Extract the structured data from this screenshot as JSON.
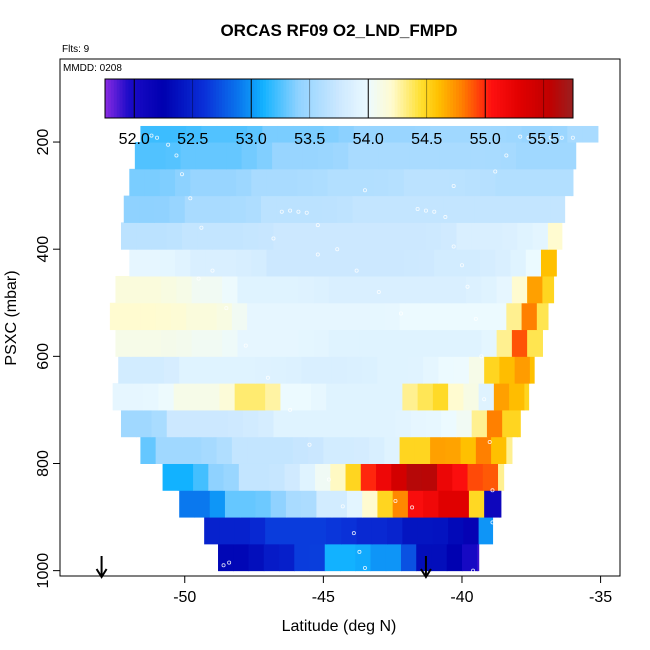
{
  "chart_data": {
    "type": "heatmap",
    "title": "ORCAS RF09 O2_LND_FMPD",
    "flights_note": "Flts: 9",
    "date_note": "MMDD: 0208",
    "xlabel": "Latitude (deg N)",
    "ylabel": "PSXC (mbar)",
    "xlim": [
      -54.5,
      -34.3
    ],
    "ylim": [
      1010,
      45
    ],
    "y_reversed": true,
    "x_ticks": [
      -50,
      -45,
      -40,
      -35
    ],
    "y_ticks": [
      200,
      400,
      600,
      800,
      1000
    ],
    "colorbar": {
      "min": 51.75,
      "max": 55.75,
      "ticks": [
        52.0,
        52.5,
        53.0,
        53.5,
        54.0,
        54.5,
        55.0,
        55.5
      ],
      "tick_labels": [
        "52.0",
        "52.5",
        "53.0",
        "53.5",
        "54.0",
        "54.5",
        "55.0",
        "55.5"
      ],
      "stops": [
        {
          "v": 51.75,
          "c": "#8a2be2"
        },
        {
          "v": 51.95,
          "c": "#1c0bc8"
        },
        {
          "v": 52.25,
          "c": "#0000b0"
        },
        {
          "v": 52.6,
          "c": "#0a30d8"
        },
        {
          "v": 52.9,
          "c": "#0a78ee"
        },
        {
          "v": 53.1,
          "c": "#12b2ff"
        },
        {
          "v": 53.4,
          "c": "#8fd2ff"
        },
        {
          "v": 53.75,
          "c": "#cce8ff"
        },
        {
          "v": 54.0,
          "c": "#ecfaff"
        },
        {
          "v": 54.2,
          "c": "#fffbd0"
        },
        {
          "v": 54.45,
          "c": "#ffe030"
        },
        {
          "v": 54.6,
          "c": "#ffc000"
        },
        {
          "v": 54.8,
          "c": "#ff8000"
        },
        {
          "v": 55.05,
          "c": "#ff1010"
        },
        {
          "v": 55.3,
          "c": "#e00000"
        },
        {
          "v": 55.55,
          "c": "#c00000"
        },
        {
          "v": 55.75,
          "c": "#9a2020"
        }
      ]
    },
    "arrows_lat": [
      -53.0,
      -41.3
    ],
    "level_bottoms": [
      1000,
      950,
      900,
      850,
      800,
      750,
      700,
      650,
      600,
      550,
      500,
      450,
      400,
      350,
      300,
      250,
      200
    ],
    "bins": [
      {
        "p": [
          950,
          1000
        ],
        "lat": [
          -48.8,
          -39.4
        ],
        "segments": [
          [
            -48.8,
            52.3
          ],
          [
            -47.3,
            52.45
          ],
          [
            -45.9,
            52.65
          ],
          [
            -44.8,
            53.1
          ],
          [
            -43.3,
            53.0
          ],
          [
            -41.8,
            52.35
          ],
          [
            -40.1,
            52.1
          ],
          [
            -39.7,
            51.9
          ]
        ]
      },
      {
        "p": [
          900,
          950
        ],
        "lat": [
          -49.3,
          -38.9
        ],
        "segments": [
          [
            -49.3,
            52.5
          ],
          [
            -47.0,
            52.65
          ],
          [
            -44.0,
            52.55
          ],
          [
            -42.0,
            52.4
          ],
          [
            -40.1,
            52.2
          ],
          [
            -39.3,
            53.0
          ],
          [
            -39.0,
            52.3
          ]
        ]
      },
      {
        "p": [
          850,
          900
        ],
        "lat": [
          -50.2,
          -38.6
        ],
        "segments": [
          [
            -50.2,
            52.9
          ],
          [
            -48.5,
            53.3
          ],
          [
            -46.5,
            53.55
          ],
          [
            -45.0,
            53.8
          ],
          [
            -43.7,
            54.2
          ],
          [
            -43.0,
            54.5
          ],
          [
            -42.2,
            55.1
          ],
          [
            -41.0,
            55.3
          ],
          [
            -39.1,
            52.1
          ]
        ]
      },
      {
        "p": [
          800,
          850
        ],
        "lat": [
          -50.8,
          -38.5
        ],
        "segments": [
          [
            -50.8,
            53.1
          ],
          [
            -49.3,
            53.4
          ],
          [
            -48.0,
            53.7
          ],
          [
            -46.0,
            53.9
          ],
          [
            -45.0,
            54.2
          ],
          [
            -44.2,
            54.5
          ],
          [
            -43.6,
            55.0
          ],
          [
            -42.8,
            55.4
          ],
          [
            -41.8,
            55.6
          ],
          [
            -40.8,
            55.2
          ],
          [
            -40.0,
            54.9
          ],
          [
            -39.3,
            55.1
          ],
          [
            -38.9,
            54.3
          ]
        ]
      },
      {
        "p": [
          750,
          800
        ],
        "lat": [
          -51.6,
          -38.2
        ],
        "segments": [
          [
            -51.6,
            53.3
          ],
          [
            -50.8,
            53.5
          ],
          [
            -48.5,
            53.7
          ],
          [
            -45.0,
            53.8
          ],
          [
            -43.0,
            53.9
          ],
          [
            -42.0,
            54.5
          ],
          [
            -41.0,
            54.7
          ],
          [
            -40.0,
            54.6
          ],
          [
            -39.3,
            54.8
          ],
          [
            -38.8,
            54.6
          ],
          [
            -38.5,
            54.3
          ]
        ]
      },
      {
        "p": [
          700,
          750
        ],
        "lat": [
          -52.3,
          -37.9
        ],
        "segments": [
          [
            -52.3,
            53.5
          ],
          [
            -50.5,
            53.75
          ],
          [
            -47.0,
            53.9
          ],
          [
            -44.0,
            53.9
          ],
          [
            -42.0,
            53.95
          ],
          [
            -40.8,
            54.0
          ],
          [
            -39.6,
            54.3
          ],
          [
            -39.0,
            54.8
          ],
          [
            -38.3,
            54.5
          ]
        ]
      },
      {
        "p": [
          650,
          700
        ],
        "lat": [
          -52.6,
          -37.6
        ],
        "segments": [
          [
            -52.6,
            53.95
          ],
          [
            -50.5,
            54.1
          ],
          [
            -48.0,
            54.35
          ],
          [
            -46.5,
            54.0
          ],
          [
            -45.0,
            53.9
          ],
          [
            -43.0,
            53.9
          ],
          [
            -42.0,
            54.3
          ],
          [
            -41.3,
            54.5
          ],
          [
            -40.5,
            54.2
          ],
          [
            -39.5,
            53.9
          ],
          [
            -38.7,
            54.7
          ],
          [
            -38.0,
            54.5
          ]
        ]
      },
      {
        "p": [
          600,
          650
        ],
        "lat": [
          -52.4,
          -37.4
        ],
        "segments": [
          [
            -52.4,
            53.8
          ],
          [
            -50.0,
            53.9
          ],
          [
            -46.0,
            53.85
          ],
          [
            -43.0,
            53.9
          ],
          [
            -41.0,
            54.0
          ],
          [
            -39.5,
            54.1
          ],
          [
            -39.0,
            54.5
          ],
          [
            -38.3,
            54.8
          ],
          [
            -37.8,
            54.6
          ]
        ]
      },
      {
        "p": [
          550,
          600
        ],
        "lat": [
          -52.5,
          -37.1
        ],
        "segments": [
          [
            -52.5,
            54.1
          ],
          [
            -50.0,
            54.05
          ],
          [
            -48.0,
            53.95
          ],
          [
            -45.0,
            53.9
          ],
          [
            -42.0,
            53.9
          ],
          [
            -39.5,
            53.9
          ],
          [
            -38.8,
            54.3
          ],
          [
            -38.1,
            54.9
          ],
          [
            -37.5,
            54.4
          ]
        ]
      },
      {
        "p": [
          500,
          550
        ],
        "lat": [
          -52.7,
          -36.9
        ],
        "segments": [
          [
            -52.7,
            54.2
          ],
          [
            -50.0,
            54.15
          ],
          [
            -48.0,
            53.95
          ],
          [
            -45.0,
            53.95
          ],
          [
            -42.0,
            54.0
          ],
          [
            -39.0,
            54.0
          ],
          [
            -38.4,
            54.3
          ],
          [
            -37.8,
            54.8
          ],
          [
            -37.3,
            54.4
          ]
        ]
      },
      {
        "p": [
          450,
          500
        ],
        "lat": [
          -52.5,
          -36.7
        ],
        "segments": [
          [
            -52.5,
            54.15
          ],
          [
            -50.0,
            54.05
          ],
          [
            -48.0,
            53.9
          ],
          [
            -45.0,
            53.85
          ],
          [
            -42.0,
            53.85
          ],
          [
            -39.0,
            53.95
          ],
          [
            -38.0,
            54.2
          ],
          [
            -37.5,
            54.7
          ],
          [
            -37.0,
            54.5
          ]
        ]
      },
      {
        "p": [
          400,
          450
        ],
        "lat": [
          -52.0,
          -36.6
        ],
        "segments": [
          [
            -52.0,
            53.95
          ],
          [
            -50.0,
            53.85
          ],
          [
            -47.0,
            53.75
          ],
          [
            -44.0,
            53.75
          ],
          [
            -41.0,
            53.8
          ],
          [
            -38.5,
            53.9
          ],
          [
            -37.4,
            54.1
          ],
          [
            -36.9,
            54.6
          ]
        ]
      },
      {
        "p": [
          350,
          400
        ],
        "lat": [
          -52.3,
          -36.4
        ],
        "segments": [
          [
            -52.3,
            53.65
          ],
          [
            -50.0,
            53.7
          ],
          [
            -47.0,
            53.75
          ],
          [
            -43.0,
            53.75
          ],
          [
            -40.0,
            53.85
          ],
          [
            -38.0,
            53.9
          ],
          [
            -36.8,
            54.2
          ]
        ]
      },
      {
        "p": [
          300,
          350
        ],
        "lat": [
          -52.2,
          -36.3
        ],
        "segments": [
          [
            -52.2,
            53.4
          ],
          [
            -50.0,
            53.55
          ],
          [
            -47.0,
            53.65
          ],
          [
            -44.0,
            53.7
          ],
          [
            -41.0,
            53.7
          ],
          [
            -38.0,
            53.7
          ]
        ]
      },
      {
        "p": [
          250,
          300
        ],
        "lat": [
          -52.0,
          -36.0
        ],
        "segments": [
          [
            -52.0,
            53.35
          ],
          [
            -50.0,
            53.45
          ],
          [
            -47.5,
            53.55
          ],
          [
            -45.0,
            53.6
          ],
          [
            -42.0,
            53.65
          ],
          [
            -39.0,
            53.6
          ]
        ]
      },
      {
        "p": [
          200,
          250
        ],
        "lat": [
          -51.8,
          -35.9
        ],
        "segments": [
          [
            -51.8,
            53.25
          ],
          [
            -50.0,
            53.3
          ],
          [
            -47.0,
            53.45
          ],
          [
            -44.0,
            53.55
          ],
          [
            -41.0,
            53.55
          ],
          [
            -38.0,
            53.5
          ]
        ]
      },
      {
        "p": [
          170,
          200
        ],
        "lat": [
          -51.6,
          -35.1
        ],
        "segments": [
          [
            -51.6,
            53.2
          ],
          [
            -49.5,
            53.25
          ],
          [
            -47.0,
            53.35
          ],
          [
            -44.0,
            53.45
          ],
          [
            -41.0,
            53.5
          ],
          [
            -38.0,
            53.45
          ],
          [
            -36.0,
            53.55
          ]
        ]
      }
    ],
    "flight_points": [
      [
        -51.2,
        188
      ],
      [
        -51.0,
        192
      ],
      [
        -50.6,
        205
      ],
      [
        -50.3,
        225
      ],
      [
        -50.1,
        260
      ],
      [
        -49.8,
        305
      ],
      [
        -49.4,
        360
      ],
      [
        -49.0,
        440
      ],
      [
        -48.5,
        510
      ],
      [
        -47.8,
        580
      ],
      [
        -47.0,
        640
      ],
      [
        -46.2,
        700
      ],
      [
        -45.5,
        765
      ],
      [
        -44.8,
        830
      ],
      [
        -44.3,
        880
      ],
      [
        -43.9,
        930
      ],
      [
        -43.7,
        965
      ],
      [
        -43.5,
        995
      ],
      [
        -48.6,
        990
      ],
      [
        -48.4,
        985
      ],
      [
        -46.8,
        380
      ],
      [
        -46.5,
        330
      ],
      [
        -46.2,
        328
      ],
      [
        -45.9,
        330
      ],
      [
        -45.6,
        332
      ],
      [
        -45.2,
        355
      ],
      [
        -44.5,
        400
      ],
      [
        -43.8,
        440
      ],
      [
        -43.0,
        480
      ],
      [
        -42.2,
        520
      ],
      [
        -41.6,
        325
      ],
      [
        -41.3,
        328
      ],
      [
        -41.0,
        330
      ],
      [
        -40.6,
        340
      ],
      [
        -40.3,
        395
      ],
      [
        -40.0,
        430
      ],
      [
        -39.8,
        470
      ],
      [
        -39.5,
        530
      ],
      [
        -39.3,
        600
      ],
      [
        -39.2,
        680
      ],
      [
        -39.0,
        760
      ],
      [
        -38.9,
        850
      ],
      [
        -38.9,
        910
      ],
      [
        -39.1,
        960
      ],
      [
        -39.2,
        1000
      ],
      [
        -39.6,
        1000
      ],
      [
        -41.8,
        882
      ],
      [
        -42.4,
        870
      ],
      [
        -37.9,
        190
      ],
      [
        -37.6,
        192
      ],
      [
        -37.2,
        192
      ],
      [
        -36.8,
        192
      ],
      [
        -36.4,
        192
      ],
      [
        -36.0,
        192
      ],
      [
        -38.4,
        225
      ],
      [
        -38.8,
        255
      ],
      [
        -40.3,
        282
      ],
      [
        -43.5,
        290
      ],
      [
        -45.2,
        410
      ],
      [
        -49.5,
        455
      ]
    ]
  }
}
